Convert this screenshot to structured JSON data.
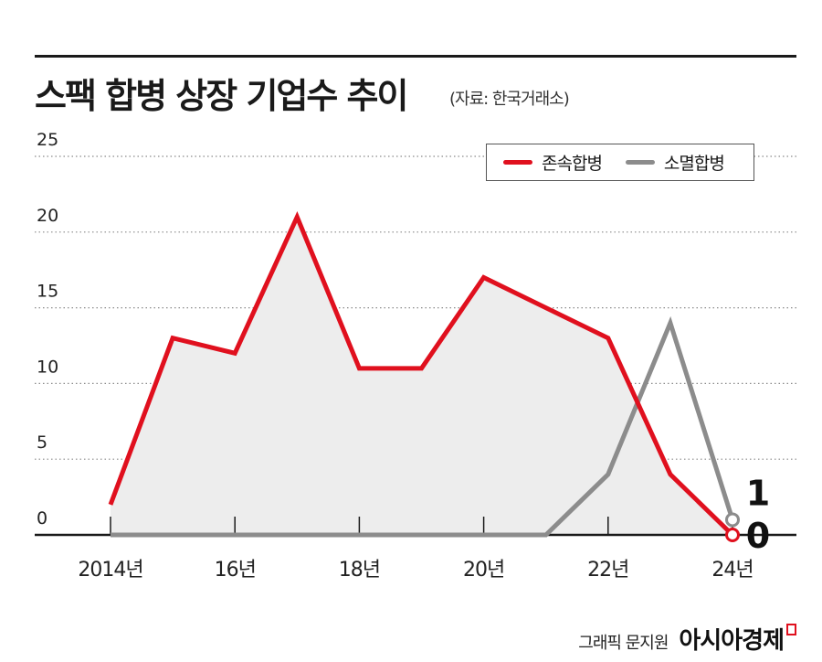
{
  "title": "스팩 합병 상장 기업수 추이",
  "source": "(자료: 한국거래소)",
  "credit": {
    "author": "그래픽 문지원",
    "brand": "아시아경제"
  },
  "colors": {
    "survivor": "#e0101e",
    "dissolve": "#8c8c8c",
    "area": "#ededed"
  },
  "chart_data": {
    "type": "line",
    "x": [
      2014,
      2015,
      2016,
      2017,
      2018,
      2019,
      2020,
      2021,
      2022,
      2023,
      2024
    ],
    "xtick_values": [
      2014,
      2016,
      2018,
      2020,
      2022,
      2024
    ],
    "xtick_labels": [
      "2014년",
      "16년",
      "18년",
      "20년",
      "22년",
      "24년"
    ],
    "ytick_values": [
      0,
      5,
      10,
      15,
      20,
      25
    ],
    "ytick_labels": [
      "0",
      "5",
      "10",
      "15",
      "20",
      "25"
    ],
    "xlim": [
      2014,
      2024
    ],
    "ylim": [
      0,
      25
    ],
    "grid": true,
    "legend": "top-right",
    "series": [
      {
        "name": "존속합병",
        "values": [
          2,
          13,
          12,
          21,
          11,
          11,
          17,
          15,
          13,
          4,
          0
        ],
        "end_label": "0"
      },
      {
        "name": "소멸합병",
        "values": [
          0,
          0,
          0,
          0,
          0,
          0,
          0,
          0,
          4,
          14,
          1
        ],
        "end_label": "1"
      }
    ]
  }
}
